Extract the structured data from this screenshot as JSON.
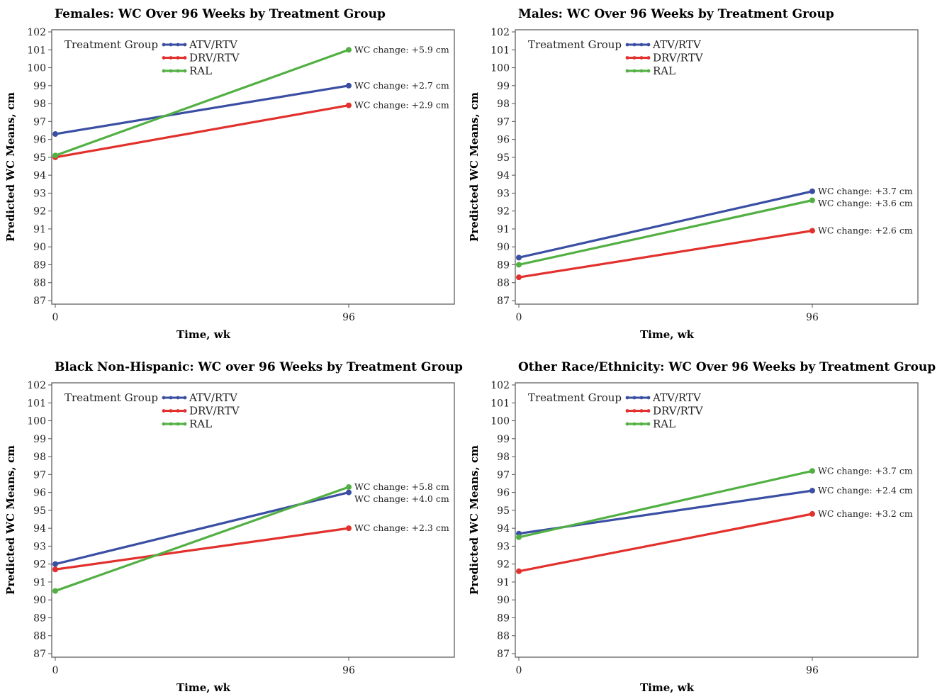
{
  "figure": {
    "legend_title": "Treatment Group",
    "colors": {
      "ATV/RTV": "#3a4fa3",
      "DRV/RTV": "#e2312d",
      "RAL": "#52b043"
    }
  },
  "chart_data": [
    {
      "type": "line",
      "title": "Females: WC Over 96 Weeks by Treatment Group",
      "xlabel": "Time, wk",
      "ylabel": "Predicted WC Means, cm",
      "x": [
        0,
        96
      ],
      "xlim": [
        0,
        130
      ],
      "ylim": [
        87,
        102
      ],
      "xticks": [
        "0",
        "96"
      ],
      "yticks": [
        "87",
        "88",
        "89",
        "90",
        "91",
        "92",
        "93",
        "94",
        "95",
        "96",
        "97",
        "98",
        "99",
        "100",
        "101",
        "102"
      ],
      "grid": false,
      "legend": "top-left",
      "series": [
        {
          "name": "ATV/RTV",
          "values": [
            96.3,
            99.0
          ],
          "annotation": "WC change: +2.7 cm"
        },
        {
          "name": "DRV/RTV",
          "values": [
            95.0,
            97.9
          ],
          "annotation": "WC change: +2.9 cm"
        },
        {
          "name": "RAL",
          "values": [
            95.1,
            101.0
          ],
          "annotation": "WC change: +5.9 cm"
        }
      ]
    },
    {
      "type": "line",
      "title": "Males: WC Over 96 Weeks by Treatment Group",
      "xlabel": "Time, wk",
      "ylabel": "Predicted WC Means, cm",
      "x": [
        0,
        96
      ],
      "xlim": [
        0,
        130
      ],
      "ylim": [
        87,
        102
      ],
      "xticks": [
        "0",
        "96"
      ],
      "yticks": [
        "87",
        "88",
        "89",
        "90",
        "91",
        "92",
        "93",
        "94",
        "95",
        "96",
        "97",
        "98",
        "99",
        "100",
        "101",
        "102"
      ],
      "grid": false,
      "legend": "top-left",
      "series": [
        {
          "name": "ATV/RTV",
          "values": [
            89.4,
            93.1
          ],
          "annotation": "WC change: +3.7 cm"
        },
        {
          "name": "DRV/RTV",
          "values": [
            88.3,
            90.9
          ],
          "annotation": "WC change: +2.6 cm"
        },
        {
          "name": "RAL",
          "values": [
            89.0,
            92.6
          ],
          "annotation": "WC change: +3.6 cm"
        }
      ]
    },
    {
      "type": "line",
      "title": "Black Non-Hispanic: WC over 96 Weeks by Treatment Group",
      "xlabel": "Time, wk",
      "ylabel": "Predicted WC Means, cm",
      "x": [
        0,
        96
      ],
      "xlim": [
        0,
        130
      ],
      "ylim": [
        87,
        102
      ],
      "xticks": [
        "0",
        "96"
      ],
      "yticks": [
        "87",
        "88",
        "89",
        "90",
        "91",
        "92",
        "93",
        "94",
        "95",
        "96",
        "97",
        "98",
        "99",
        "100",
        "101",
        "102"
      ],
      "grid": false,
      "legend": "top-left",
      "series": [
        {
          "name": "ATV/RTV",
          "values": [
            92.0,
            96.0
          ],
          "annotation": "WC change: +4.0 cm"
        },
        {
          "name": "DRV/RTV",
          "values": [
            91.7,
            94.0
          ],
          "annotation": "WC change: +2.3 cm"
        },
        {
          "name": "RAL",
          "values": [
            90.5,
            96.3
          ],
          "annotation": "WC change: +5.8 cm"
        }
      ]
    },
    {
      "type": "line",
      "title": "Other Race/Ethnicity: WC Over 96 Weeks by Treatment Group",
      "xlabel": "Time, wk",
      "ylabel": "Predicted WC Means, cm",
      "x": [
        0,
        96
      ],
      "xlim": [
        0,
        130
      ],
      "ylim": [
        87,
        102
      ],
      "xticks": [
        "0",
        "96"
      ],
      "yticks": [
        "87",
        "88",
        "89",
        "90",
        "91",
        "92",
        "93",
        "94",
        "95",
        "96",
        "97",
        "98",
        "99",
        "100",
        "101",
        "102"
      ],
      "grid": false,
      "legend": "top-left",
      "series": [
        {
          "name": "ATV/RTV",
          "values": [
            93.7,
            96.1
          ],
          "annotation": "WC change: +2.4 cm"
        },
        {
          "name": "DRV/RTV",
          "values": [
            91.6,
            94.8
          ],
          "annotation": "WC change: +3.2 cm"
        },
        {
          "name": "RAL",
          "values": [
            93.5,
            97.2
          ],
          "annotation": "WC change: +3.7 cm"
        }
      ]
    }
  ]
}
